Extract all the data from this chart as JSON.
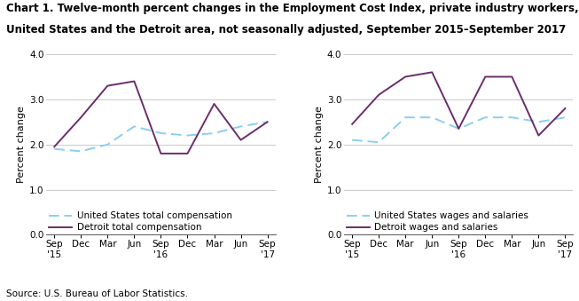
{
  "title_line1": "Chart 1. Twelve-month percent changes in the Employment Cost Index, private industry workers,",
  "title_line2": "United States and the Detroit area, not seasonally adjusted, September 2015–September 2017",
  "source": "Source: U.S. Bureau of Labor Statistics.",
  "ylabel": "Percent change",
  "x_labels": [
    "Sep\n'15",
    "Dec",
    "Mar",
    "Jun",
    "Sep\n'16",
    "Dec",
    "Mar",
    "Jun",
    "Sep\n'17"
  ],
  "ylim": [
    0.0,
    4.0
  ],
  "yticks": [
    0.0,
    1.0,
    2.0,
    3.0,
    4.0
  ],
  "left_us": [
    1.9,
    1.85,
    2.0,
    2.4,
    2.25,
    2.2,
    2.25,
    2.4,
    2.5
  ],
  "left_detroit": [
    1.95,
    2.6,
    3.3,
    3.4,
    1.8,
    1.8,
    2.9,
    2.1,
    2.5
  ],
  "right_us": [
    2.1,
    2.05,
    2.6,
    2.6,
    2.35,
    2.6,
    2.6,
    2.5,
    2.6
  ],
  "right_detroit": [
    2.45,
    3.1,
    3.5,
    3.6,
    2.35,
    3.5,
    3.5,
    2.2,
    2.8
  ],
  "us_color": "#89CFF0",
  "detroit_color": "#6B2D6B",
  "left_legend1": "United States total compensation",
  "left_legend2": "Detroit total compensation",
  "right_legend1": "United States wages and salaries",
  "right_legend2": "Detroit wages and salaries",
  "title_fontsize": 8.5,
  "axis_label_fontsize": 8,
  "tick_fontsize": 7.5,
  "legend_fontsize": 7.5,
  "source_fontsize": 7.5
}
